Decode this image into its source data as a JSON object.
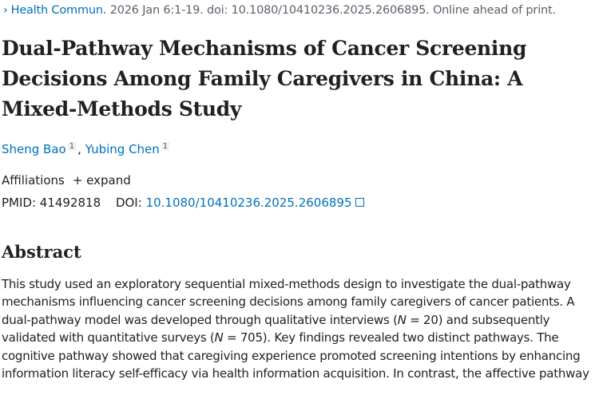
{
  "citation": {
    "journal": "Health Commun.",
    "details": " 2026 Jan 6:1-19. doi: 10.1080/10410236.2025.2606895. Online ahead of print."
  },
  "title": "Dual-Pathway Mechanisms of Cancer Screening Decisions Among Family Caregivers in China: A Mixed-Methods Study",
  "authors": [
    {
      "name": "Sheng Bao",
      "aff": "1"
    },
    {
      "name": "Yubing Chen",
      "aff": "1"
    }
  ],
  "affiliations": {
    "label": "Affiliations",
    "expand": "+ expand"
  },
  "ids": {
    "pmid_label": "PMID:",
    "pmid": "41492818",
    "doi_label": "DOI:",
    "doi": "10.1080/10410236.2025.2606895"
  },
  "abstract": {
    "heading": "Abstract",
    "p1": "This study used an exploratory sequential mixed-methods design to investigate the dual-pathway mechanisms influencing cancer screening decisions among family caregivers of cancer patients. A dual-pathway model was developed through qualitative interviews (",
    "n_label": "N",
    "p2": " = 20) and subsequently validated with quantitative surveys (",
    "p3": " = 705). Key findings revealed two distinct pathways. The cognitive pathway showed that caregiving experience promoted screening intentions by enhancing information literacy self-efficacy via health information acquisition. In contrast, the affective pathway"
  }
}
